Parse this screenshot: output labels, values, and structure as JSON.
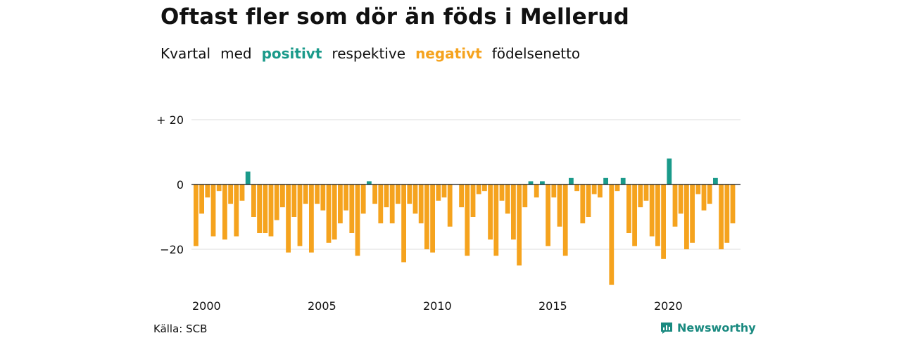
{
  "title": "Oftast fler som dör än föds i Mellerud",
  "subtitle": {
    "part1": "Kvartal",
    "part2": "med",
    "positive": "positivt",
    "part3": "respektive",
    "negative": "negativt",
    "part4": "födelsenetto"
  },
  "source": "Källa: SCB",
  "brand": "Newsworthy",
  "colors": {
    "positive": "#1a9a8a",
    "negative": "#f5a31e",
    "grid": "#dddddd",
    "zero": "#111111"
  },
  "chart_data": {
    "type": "bar",
    "ylim": [
      -31,
      20
    ],
    "y_ticks": [
      {
        "value": 20,
        "label": "+ 20"
      },
      {
        "value": 0,
        "label": "0"
      },
      {
        "value": -20,
        "label": "−20"
      }
    ],
    "x_ticks": [
      "2000",
      "2005",
      "2010",
      "2015",
      "2020"
    ],
    "x_start_year": 2000,
    "values": [
      -19,
      -9,
      -4,
      -16,
      -2,
      -17,
      -6,
      -16,
      -5,
      4,
      -10,
      -15,
      -15,
      -16,
      -11,
      -7,
      -21,
      -10,
      -19,
      -6,
      -21,
      -6,
      -8,
      -18,
      -17,
      -12,
      -8,
      -15,
      -22,
      -9,
      1,
      -6,
      -12,
      -7,
      -12,
      -6,
      -24,
      -6,
      -9,
      -12,
      -20,
      -21,
      -5,
      -4,
      -13,
      0,
      -7,
      -22,
      -10,
      -3,
      -2,
      -17,
      -22,
      -5,
      -9,
      -17,
      -25,
      -7,
      1,
      -4,
      1,
      -19,
      -4,
      -13,
      -22,
      2,
      -2,
      -12,
      -10,
      -3,
      -4,
      2,
      -31,
      -2,
      2,
      -15,
      -19,
      -7,
      -5,
      -16,
      -19,
      -23,
      8,
      -13,
      -9,
      -20,
      -18,
      -3,
      -8,
      -6,
      2,
      -20,
      -18,
      -12
    ]
  }
}
